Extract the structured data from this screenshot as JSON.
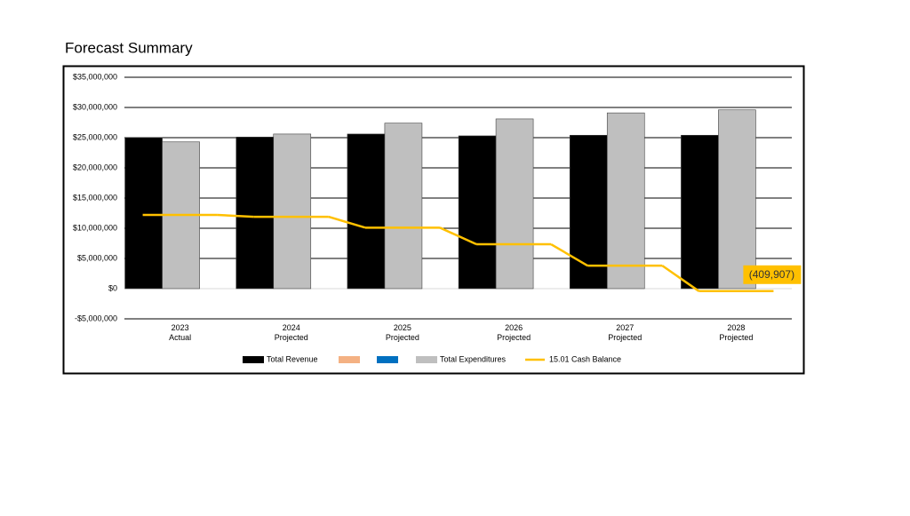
{
  "chart_data": {
    "type": "bar",
    "title": "Forecast Summary",
    "categories": [
      [
        "2023",
        "Actual"
      ],
      [
        "2024",
        "Projected"
      ],
      [
        "2025",
        "Projected"
      ],
      [
        "2026",
        "Projected"
      ],
      [
        "2027",
        "Projected"
      ],
      [
        "2028",
        "Projected"
      ]
    ],
    "series": [
      {
        "name": "Total Revenue",
        "type": "bar",
        "color": "#000000",
        "values": [
          25000000,
          25100000,
          25600000,
          25300000,
          25400000,
          25400000
        ]
      },
      {
        "name": null,
        "type": "bar",
        "color": "#f4b183",
        "values": [
          null,
          null,
          null,
          null,
          null,
          null
        ]
      },
      {
        "name": null,
        "type": "bar",
        "color": "#0070c0",
        "values": [
          null,
          null,
          null,
          null,
          null,
          null
        ]
      },
      {
        "name": "Total Expenditures",
        "type": "bar",
        "color": "#bfbfbf",
        "values": [
          24300000,
          25600000,
          27400000,
          28100000,
          29100000,
          29600000
        ]
      },
      {
        "name": "15.01 Cash Balance",
        "type": "line",
        "color": "#ffc000",
        "values": [
          12200000,
          11900000,
          10100000,
          7350000,
          3800000,
          -409907
        ],
        "value_labels": [
          null,
          null,
          null,
          null,
          null,
          "(409,907)"
        ]
      }
    ],
    "ylim": [
      -5000000,
      35000000
    ],
    "yticks": [
      {
        "value": -5000000,
        "label": "-$5,000,000"
      },
      {
        "value": 0,
        "label": "$0"
      },
      {
        "value": 5000000,
        "label": "$5,000,000"
      },
      {
        "value": 10000000,
        "label": "$10,000,000"
      },
      {
        "value": 15000000,
        "label": "$15,000,000"
      },
      {
        "value": 20000000,
        "label": "$20,000,000"
      },
      {
        "value": 25000000,
        "label": "$25,000,000"
      },
      {
        "value": 30000000,
        "label": "$30,000,000"
      },
      {
        "value": 35000000,
        "label": "$35,000,000"
      }
    ],
    "grid": true,
    "legend": "bottom"
  }
}
